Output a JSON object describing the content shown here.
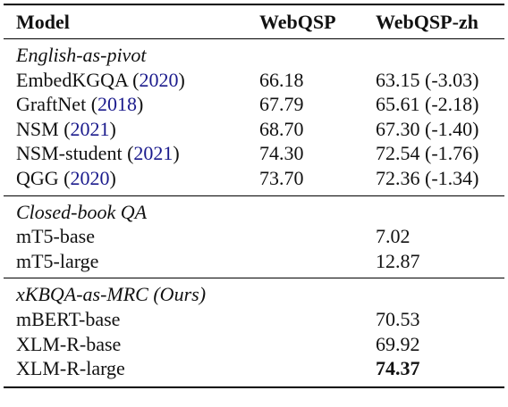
{
  "header": {
    "model": "Model",
    "col1": "WebQSP",
    "col2": "WebQSP-zh"
  },
  "groups": [
    {
      "title": "English-as-pivot",
      "rows": [
        {
          "name": "EmbedKGQA",
          "year": "2020",
          "webqsp": "66.18",
          "webqsp_zh": "63.15 (-3.03)"
        },
        {
          "name": "GraftNet",
          "year": "2018",
          "webqsp": "67.79",
          "webqsp_zh": "65.61 (-2.18)"
        },
        {
          "name": "NSM",
          "year": "2021",
          "webqsp": "68.70",
          "webqsp_zh": "67.30 (-1.40)"
        },
        {
          "name": "NSM-student",
          "year": "2021",
          "webqsp": "74.30",
          "webqsp_zh": "72.54 (-1.76)"
        },
        {
          "name": "QGG",
          "year": "2020",
          "webqsp": "73.70",
          "webqsp_zh": "72.36 (-1.34)"
        }
      ]
    },
    {
      "title": "Closed-book QA",
      "rows": [
        {
          "name": "mT5-base",
          "webqsp": "",
          "webqsp_zh": "7.02"
        },
        {
          "name": "mT5-large",
          "webqsp": "",
          "webqsp_zh": "12.87"
        }
      ]
    },
    {
      "title": "xKBQA-as-MRC (Ours)",
      "rows": [
        {
          "name": "mBERT-base",
          "webqsp": "",
          "webqsp_zh": "70.53"
        },
        {
          "name": "XLM-R-base",
          "webqsp": "",
          "webqsp_zh": "69.92"
        },
        {
          "name": "XLM-R-large",
          "webqsp": "",
          "webqsp_zh": "74.37"
        }
      ]
    }
  ]
}
